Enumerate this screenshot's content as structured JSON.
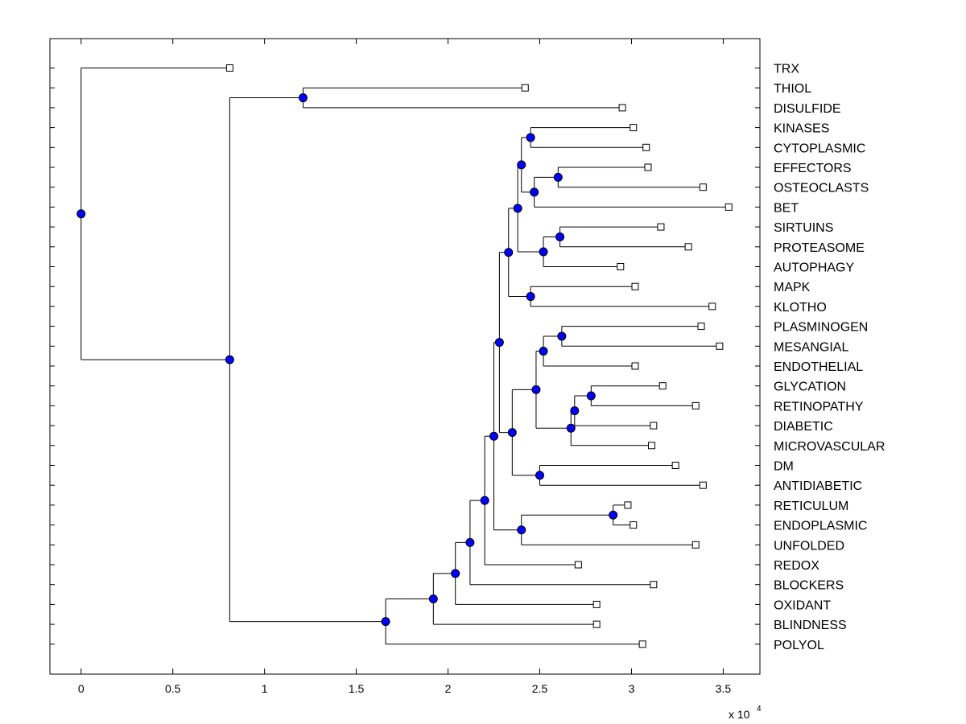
{
  "chart_data": {
    "type": "dendrogram",
    "title": "",
    "xlabel": "",
    "ylabel": "",
    "x_scale_label": "x 10",
    "x_scale_exponent": "4",
    "x_ticks": [
      "0",
      "0.5",
      "1",
      "1.5",
      "2",
      "2.5",
      "3",
      "3.5"
    ],
    "x_tick_values": [
      0,
      0.5,
      1,
      1.5,
      2,
      2.5,
      3,
      3.5
    ],
    "xlim": [
      -0.17,
      3.7
    ],
    "colors": {
      "node": "#0000ff",
      "line": "#000000",
      "leaf_fill": "#ffffff"
    },
    "leaves": [
      "TRX",
      "THIOL",
      "DISULFIDE",
      "KINASES",
      "CYTOPLASMIC",
      "EFFECTORS",
      "OSTEOCLASTS",
      "BET",
      "SIRTUINS",
      "PROTEASOME",
      "AUTOPHAGY",
      "MAPK",
      "KLOTHO",
      "PLASMINOGEN",
      "MESANGIAL",
      "ENDOTHELIAL",
      "GLYCATION",
      "RETINOPATHY",
      "DIABETIC",
      "MICROVASCULAR",
      "DM",
      "ANTIDIABETIC",
      "RETICULUM",
      "ENDOPLASMIC",
      "UNFOLDED",
      "REDOX",
      "BLOCKERS",
      "OXIDANT",
      "BLINDNESS",
      "POLYOL"
    ],
    "nodes": [
      {
        "id": "TRX",
        "x": 0.81
      },
      {
        "id": "THIOL",
        "x": 2.42
      },
      {
        "id": "DISULFIDE",
        "x": 2.95
      },
      {
        "id": "KINASES",
        "x": 3.01
      },
      {
        "id": "CYTOPLASMIC",
        "x": 3.08
      },
      {
        "id": "EFFECTORS",
        "x": 3.09
      },
      {
        "id": "OSTEOCLASTS",
        "x": 3.39
      },
      {
        "id": "BET",
        "x": 3.53
      },
      {
        "id": "SIRTUINS",
        "x": 3.16
      },
      {
        "id": "PROTEASOME",
        "x": 3.31
      },
      {
        "id": "AUTOPHAGY",
        "x": 2.94
      },
      {
        "id": "MAPK",
        "x": 3.02
      },
      {
        "id": "KLOTHO",
        "x": 3.44
      },
      {
        "id": "PLASMINOGEN",
        "x": 3.38
      },
      {
        "id": "MESANGIAL",
        "x": 3.48
      },
      {
        "id": "ENDOTHELIAL",
        "x": 3.02
      },
      {
        "id": "GLYCATION",
        "x": 3.17
      },
      {
        "id": "RETINOPATHY",
        "x": 3.35
      },
      {
        "id": "DIABETIC",
        "x": 3.12
      },
      {
        "id": "MICROVASCULAR",
        "x": 3.11
      },
      {
        "id": "DM",
        "x": 3.24
      },
      {
        "id": "ANTIDIABETIC",
        "x": 3.39
      },
      {
        "id": "RETICULUM",
        "x": 2.98
      },
      {
        "id": "ENDOPLASMIC",
        "x": 3.01
      },
      {
        "id": "UNFOLDED",
        "x": 3.35
      },
      {
        "id": "REDOX",
        "x": 2.71
      },
      {
        "id": "BLOCKERS",
        "x": 3.12
      },
      {
        "id": "OXIDANT",
        "x": 2.81
      },
      {
        "id": "BLINDNESS",
        "x": 2.81
      },
      {
        "id": "POLYOL",
        "x": 3.06
      },
      {
        "id": "n_thiol_disulfide",
        "x": 1.21,
        "children": [
          "THIOL",
          "DISULFIDE"
        ]
      },
      {
        "id": "n_kin_cyto",
        "x": 2.45,
        "children": [
          "KINASES",
          "CYTOPLASMIC"
        ]
      },
      {
        "id": "n_eff_ost",
        "x": 2.6,
        "children": [
          "EFFECTORS",
          "OSTEOCLASTS"
        ]
      },
      {
        "id": "n_effost_bet",
        "x": 2.47,
        "children": [
          "n_eff_ost",
          "BET"
        ]
      },
      {
        "id": "n_group_a",
        "x": 2.4,
        "children": [
          "n_kin_cyto",
          "n_effost_bet"
        ]
      },
      {
        "id": "n_sirt_prot",
        "x": 2.61,
        "children": [
          "SIRTUINS",
          "PROTEASOME"
        ]
      },
      {
        "id": "n_sp_auto",
        "x": 2.52,
        "children": [
          "n_sirt_prot",
          "AUTOPHAGY"
        ]
      },
      {
        "id": "n_group_b",
        "x": 2.38,
        "children": [
          "n_group_a",
          "n_sp_auto"
        ]
      },
      {
        "id": "n_mapk_klotho",
        "x": 2.45,
        "children": [
          "MAPK",
          "KLOTHO"
        ]
      },
      {
        "id": "n_group_c",
        "x": 2.33,
        "children": [
          "n_group_b",
          "n_mapk_klotho"
        ]
      },
      {
        "id": "n_plas_mes",
        "x": 2.62,
        "children": [
          "PLASMINOGEN",
          "MESANGIAL"
        ]
      },
      {
        "id": "n_pm_endo",
        "x": 2.52,
        "children": [
          "n_plas_mes",
          "ENDOTHELIAL"
        ]
      },
      {
        "id": "n_glyc_ret",
        "x": 2.78,
        "children": [
          "GLYCATION",
          "RETINOPATHY"
        ]
      },
      {
        "id": "n_gr_diab",
        "x": 2.69,
        "children": [
          "n_glyc_ret",
          "DIABETIC"
        ]
      },
      {
        "id": "n_grd_micro",
        "x": 2.67,
        "children": [
          "n_gr_diab",
          "MICROVASCULAR"
        ]
      },
      {
        "id": "n_group_d",
        "x": 2.48,
        "children": [
          "n_pm_endo",
          "n_grd_micro"
        ]
      },
      {
        "id": "n_dm_anti",
        "x": 2.5,
        "children": [
          "DM",
          "ANTIDIABETIC"
        ]
      },
      {
        "id": "n_group_e",
        "x": 2.35,
        "children": [
          "n_group_d",
          "n_dm_anti"
        ]
      },
      {
        "id": "n_group_f",
        "x": 2.28,
        "children": [
          "n_group_c",
          "n_group_e"
        ]
      },
      {
        "id": "n_ret_endo",
        "x": 2.9,
        "children": [
          "RETICULUM",
          "ENDOPLASMIC"
        ]
      },
      {
        "id": "n_re_unf",
        "x": 2.4,
        "children": [
          "n_ret_endo",
          "UNFOLDED"
        ]
      },
      {
        "id": "n_group_g",
        "x": 2.25,
        "children": [
          "n_group_f",
          "n_re_unf"
        ]
      },
      {
        "id": "n_group_h",
        "x": 2.2,
        "children": [
          "n_group_g",
          "REDOX"
        ]
      },
      {
        "id": "n_group_i",
        "x": 2.12,
        "children": [
          "n_group_h",
          "BLOCKERS"
        ]
      },
      {
        "id": "n_group_j",
        "x": 2.04,
        "children": [
          "n_group_i",
          "OXIDANT"
        ]
      },
      {
        "id": "n_group_k",
        "x": 1.92,
        "children": [
          "n_group_j",
          "BLINDNESS"
        ]
      },
      {
        "id": "n_group_l",
        "x": 1.66,
        "children": [
          "n_group_k",
          "POLYOL"
        ]
      },
      {
        "id": "n_group_m",
        "x": 0.81,
        "children": [
          "n_thiol_disulfide",
          "n_group_l"
        ]
      },
      {
        "id": "root",
        "x": 0.0,
        "children": [
          "TRX",
          "n_group_m"
        ]
      }
    ]
  }
}
